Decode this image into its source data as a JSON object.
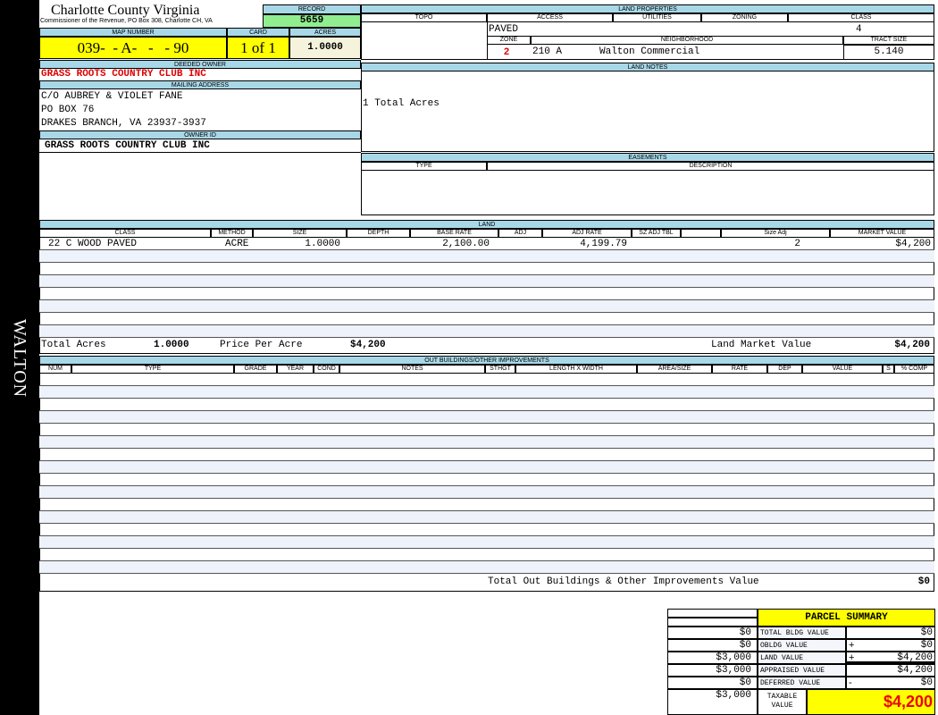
{
  "sidebar": {
    "label": "WALTON"
  },
  "header": {
    "title": "Charlotte County Virginia",
    "subtitle": "Commissioner of the Revenue, PO Box 308, Charlotte CH, VA"
  },
  "record": {
    "label": "RECORD",
    "value": "5659"
  },
  "map": {
    "label": "MAP NUMBER",
    "value": "039-  - A-   -   - 90",
    "card_label": "CARD",
    "card_value": "1 of 1",
    "acres_label": "ACRES",
    "acres_value": "1.0000"
  },
  "deeded_owner": {
    "label": "DEEDED OWNER",
    "value": "GRASS ROOTS COUNTRY CLUB INC"
  },
  "mailing": {
    "label": "MAILING ADDRESS",
    "lines": [
      "C/O AUBREY & VIOLET FANE",
      "PO BOX 76",
      "DRAKES BRANCH, VA 23937-3937"
    ]
  },
  "owner_id": {
    "label": "OWNER ID",
    "value": "GRASS ROOTS COUNTRY CLUB INC"
  },
  "land_properties": {
    "label": "LAND PROPERTIES",
    "columns": [
      "TOPO",
      "ACCESS",
      "UTILITIES",
      "ZONING",
      "CLASS"
    ],
    "access": "PAVED",
    "class": "4",
    "zone_label": "ZONE",
    "neighborhood_label": "NEIGHBORHOOD",
    "tract_label": "TRACT SIZE",
    "zone": "2",
    "neighborhood_code": "210 A",
    "neighborhood": "Walton Commercial",
    "tract_size": "5.140"
  },
  "land_notes": {
    "label": "LAND NOTES",
    "text": "1 Total Acres"
  },
  "easements": {
    "label": "EASEMENTS",
    "columns": [
      "TYPE",
      "DESCRIPTION"
    ]
  },
  "land": {
    "label": "LAND",
    "columns": [
      "CLASS",
      "METHOD",
      "SIZE",
      "DEPTH",
      "BASE RATE",
      "ADJ",
      "ADJ RATE",
      "SZ ADJ TBL",
      "",
      "Size Adj",
      "MARKET VALUE"
    ],
    "rows": [
      {
        "class": "22 C WOOD PAVED",
        "method": "ACRE",
        "size": "1.0000",
        "base_rate": "2,100.00",
        "adj_rate": "4,199.79",
        "size_adj": "2",
        "market_value": "$4,200"
      }
    ],
    "total_acres_label": "Total Acres",
    "total_acres": "1.0000",
    "ppa_label": "Price Per Acre",
    "ppa": "$4,200",
    "lmv_label": "Land Market Value",
    "lmv": "$4,200"
  },
  "outbuildings": {
    "label": "OUT BUILDINGS/OTHER IMPROVEMENTS",
    "columns": [
      "NUM",
      "TYPE",
      "GRADE",
      "YEAR",
      "COND",
      "NOTES",
      "STHGT",
      "LENGTH X WIDTH",
      "AREA/SIZE",
      "RATE",
      "DEP",
      "VALUE",
      "S",
      "% COMP"
    ],
    "total_label": "Total Out Buildings & Other Improvements Value",
    "total": "$0"
  },
  "summary": {
    "title": "PARCEL SUMMARY",
    "rows": [
      {
        "prior": "$0",
        "label": "TOTAL BLDG VALUE",
        "op": "",
        "value": "$0"
      },
      {
        "prior": "$0",
        "label": "OBLDG VALUE",
        "op": "+",
        "value": "$0"
      },
      {
        "prior": "$3,000",
        "label": "LAND VALUE",
        "op": "+",
        "value": "$4,200"
      },
      {
        "prior": "$3,000",
        "label": "APPRAISED VALUE",
        "op": "",
        "value": "$4,200"
      },
      {
        "prior": "$0",
        "label": "DEFERRED VALUE",
        "op": "-",
        "value": "$0"
      }
    ],
    "taxable_prior": "$3,000",
    "taxable_label": "TAXABLE VALUE",
    "taxable": "$4,200"
  },
  "colors": {
    "header_blue": "#a8d8e8",
    "yellow": "#ffff00",
    "green": "#90ee90",
    "red": "#dd0000"
  }
}
